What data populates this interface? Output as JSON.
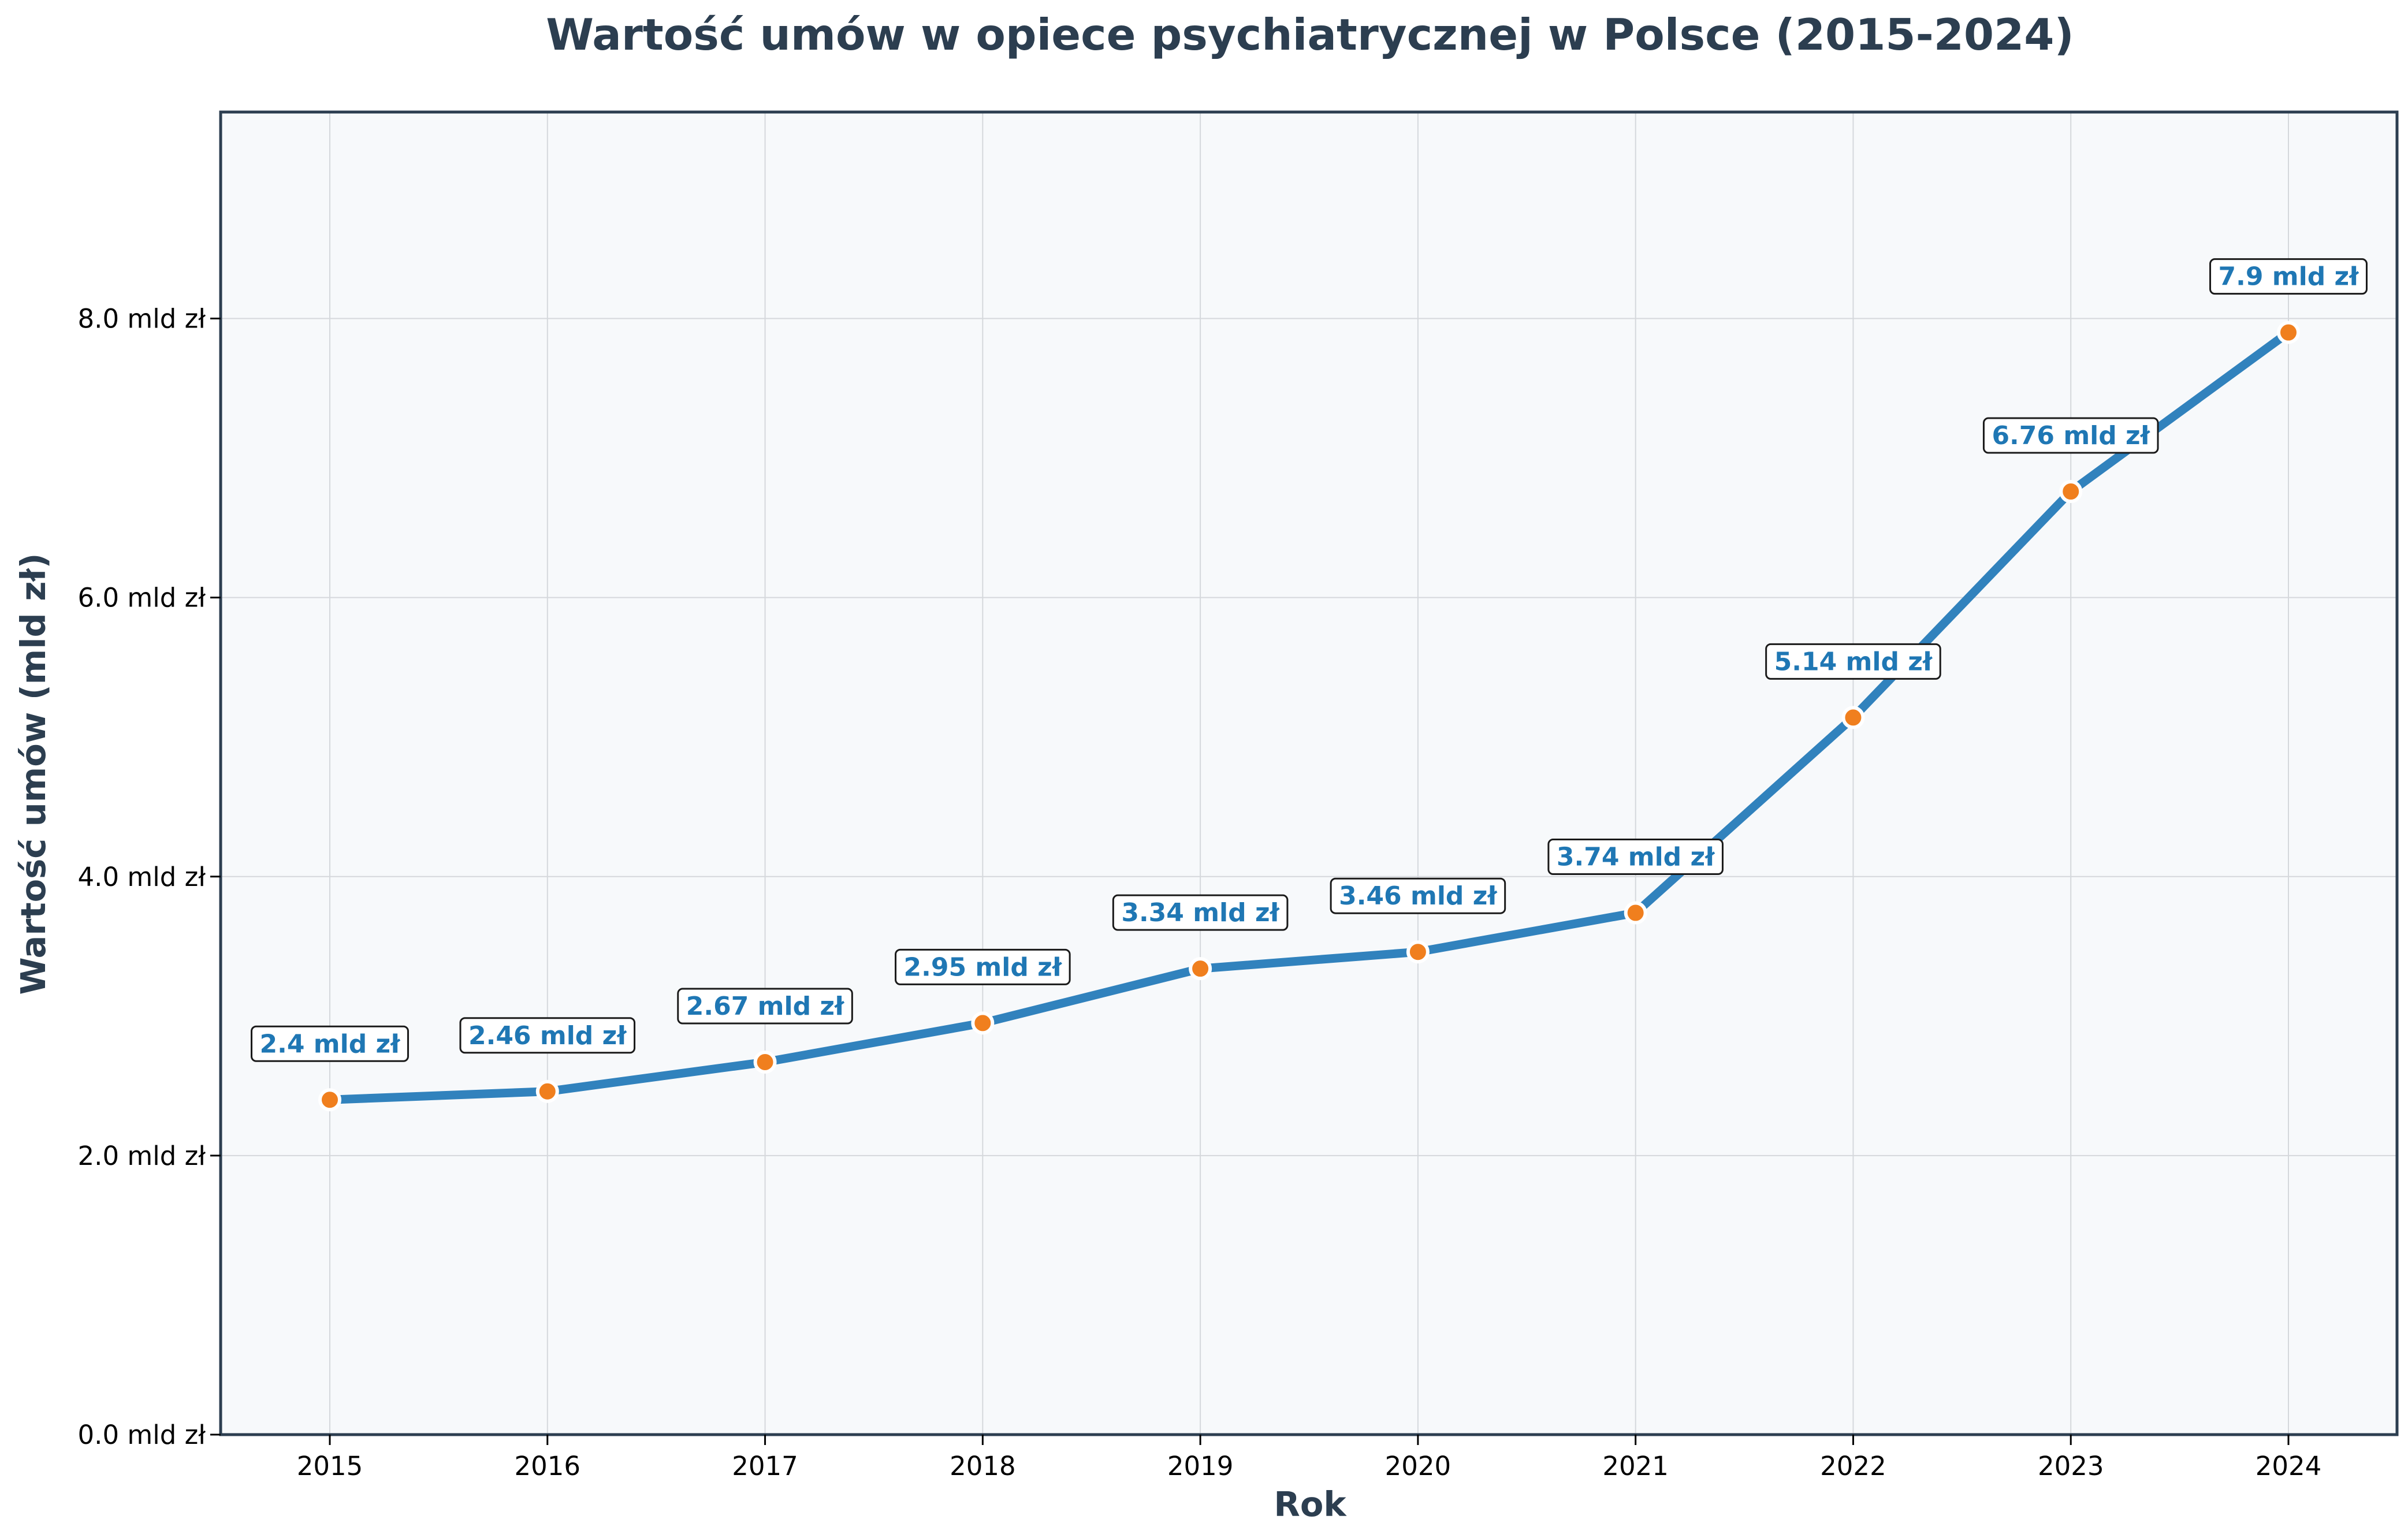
{
  "chart_data": {
    "type": "line",
    "title": "Wartość umów w opiece psychiatrycznej w Polsce (2015-2024)",
    "xlabel": "Rok",
    "ylabel": "Wartość umów (mld zł)",
    "categories": [
      "2015",
      "2016",
      "2017",
      "2018",
      "2019",
      "2020",
      "2021",
      "2022",
      "2023",
      "2024"
    ],
    "series": [
      {
        "values": [
          2.4,
          2.46,
          2.67,
          2.95,
          3.34,
          3.46,
          3.74,
          5.14,
          6.76,
          7.9
        ],
        "data_labels": [
          "2.4 mld zł",
          "2.46 mld zł",
          "2.67 mld zł",
          "2.95 mld zł",
          "3.34 mld zł",
          "3.46 mld zł",
          "3.74 mld zł",
          "5.14 mld zł",
          "6.76 mld zł",
          "7.9 mld zł"
        ]
      }
    ],
    "ylim": [
      0,
      9.48
    ],
    "yticks": [
      0,
      2,
      4,
      6,
      8
    ],
    "ytick_labels": [
      "0.0 mld zł",
      "2.0 mld zł",
      "4.0 mld zł",
      "6.0 mld zł",
      "8.0 mld zł"
    ],
    "grid": true,
    "colors": {
      "line": "#3182bd",
      "marker": "#f07f1e",
      "marker_edge": "#ffffff",
      "plot_background": "#f7f9fb",
      "frame": "#2c3e50",
      "grid": "#d5d8dc",
      "data_label_text": "#1f77b4",
      "title_text": "#2c3e50"
    }
  }
}
